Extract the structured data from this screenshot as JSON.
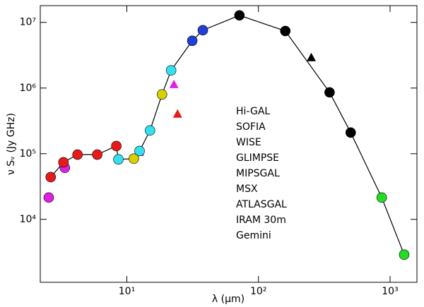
{
  "chart_data": {
    "type": "scatter",
    "xlabel": "λ (μm)",
    "ylabel": "ν Sᵥ (Jy GHz)",
    "xscale": "log",
    "yscale": "log",
    "xlim": [
      2.2,
      1600
    ],
    "ylim": [
      1100,
      18000000
    ],
    "xticks": [
      {
        "value": 10,
        "label": "10¹"
      },
      {
        "value": 100,
        "label": "10²"
      },
      {
        "value": 1000,
        "label": "10³"
      }
    ],
    "yticks": [
      {
        "value": 10000,
        "label": "10⁴"
      },
      {
        "value": 100000,
        "label": "10⁵"
      },
      {
        "value": 1000000,
        "label": "10⁶"
      },
      {
        "value": 10000000,
        "label": "10⁷"
      }
    ],
    "line": {
      "color": "#000000",
      "x": [
        2.64,
        3.3,
        4.22,
        5.96,
        8.32,
        8.63,
        11.3,
        12.5,
        15.0,
        18.5,
        21.7,
        31.4,
        37.8,
        71.7,
        160,
        347,
        502,
        864,
        1280
      ],
      "values": [
        44000,
        74000,
        97000,
        97000,
        131000,
        82000,
        84000,
        110000,
        226000,
        800000,
        1860000,
        5250000,
        7600000,
        12800000,
        7400000,
        860000,
        210000,
        21500,
        2900
      ]
    },
    "series": [
      {
        "name": "Hi-GAL",
        "color": "#000000",
        "x": [
          71.7,
          160,
          252,
          347,
          502
        ],
        "values": [
          12800000,
          7400000,
          2900000,
          860000,
          210000
        ],
        "markers": [
          "circle",
          "circle",
          "triangle",
          "circle",
          "circle"
        ]
      },
      {
        "name": "SOFIA",
        "color": "#1f3fd8",
        "x": [
          31.4,
          37.8
        ],
        "values": [
          5250000,
          7600000
        ],
        "markers": [
          "circle",
          "circle"
        ]
      },
      {
        "name": "WISE",
        "color": "#e020e0",
        "x": [
          2.55,
          3.38,
          12.5,
          22.8
        ],
        "values": [
          21500,
          61000,
          105000,
          1130000
        ],
        "markers": [
          "circle",
          "circle",
          "triangle",
          "triangle"
        ]
      },
      {
        "name": "GLIMPSE",
        "color": "#e81919",
        "x": [
          2.64,
          3.3,
          4.22,
          5.96,
          8.32
        ],
        "values": [
          44000,
          74000,
          97000,
          97000,
          131000
        ],
        "markers": [
          "circle",
          "circle",
          "circle",
          "circle",
          "circle"
        ]
      },
      {
        "name": "MIPSGAL",
        "color": "#e81919",
        "x": [
          24.3
        ],
        "values": [
          400000
        ],
        "markers": [
          "triangle"
        ]
      },
      {
        "name": "MSX",
        "color": "#33e0f0",
        "x": [
          8.63,
          12.5,
          15.0,
          21.7
        ],
        "values": [
          82000,
          110000,
          226000,
          1860000
        ],
        "markers": [
          "circle",
          "circle",
          "circle",
          "circle"
        ]
      },
      {
        "name": "ATLASGAL",
        "color": "#22dd22",
        "x": [
          864
        ],
        "values": [
          21500
        ],
        "markers": [
          "circle"
        ]
      },
      {
        "name": "IRAM 30m",
        "color": "#22dd22",
        "x": [
          1280
        ],
        "values": [
          2900
        ],
        "markers": [
          "circle"
        ]
      },
      {
        "name": "Gemini",
        "color": "#d8d000",
        "x": [
          11.3,
          18.5
        ],
        "values": [
          84000,
          800000
        ],
        "markers": [
          "circle",
          "circle"
        ]
      }
    ]
  }
}
